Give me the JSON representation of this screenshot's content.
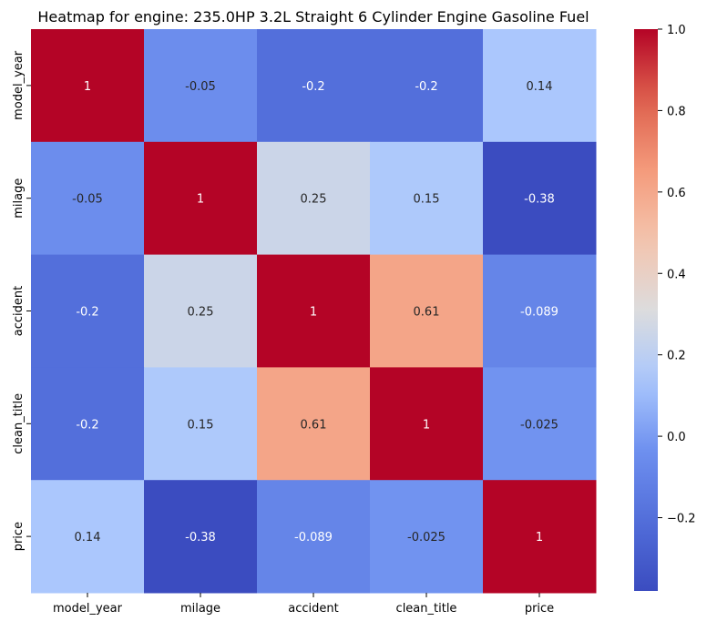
{
  "chart_data": {
    "type": "heatmap",
    "title": "Heatmap for engine: 235.0HP 3.2L Straight 6 Cylinder Engine Gasoline Fuel",
    "x_labels": [
      "model_year",
      "milage",
      "accident",
      "clean_title",
      "price"
    ],
    "y_labels": [
      "model_year",
      "milage",
      "accident",
      "clean_title",
      "price"
    ],
    "values": [
      [
        1,
        -0.05,
        -0.2,
        -0.2,
        0.14
      ],
      [
        -0.05,
        1,
        0.25,
        0.15,
        -0.38
      ],
      [
        -0.2,
        0.25,
        1,
        0.61,
        -0.089
      ],
      [
        -0.2,
        0.15,
        0.61,
        1,
        -0.025
      ],
      [
        0.14,
        -0.38,
        -0.089,
        -0.025,
        1
      ]
    ],
    "value_labels": [
      [
        "1",
        "-0.05",
        "-0.2",
        "-0.2",
        "0.14"
      ],
      [
        "-0.05",
        "1",
        "0.25",
        "0.15",
        "-0.38"
      ],
      [
        "-0.2",
        "0.25",
        "1",
        "0.61",
        "-0.089"
      ],
      [
        "-0.2",
        "0.15",
        "0.61",
        "1",
        "-0.025"
      ],
      [
        "0.14",
        "-0.38",
        "-0.089",
        "-0.025",
        "1"
      ]
    ],
    "colormap": "coolwarm",
    "color_range": [
      -0.38,
      1.0
    ],
    "colorbar_ticks": [
      1.0,
      0.8,
      0.6,
      0.4,
      0.2,
      0.0,
      -0.2
    ],
    "colorbar_tick_labels": [
      "1.0",
      "0.8",
      "0.6",
      "0.4",
      "0.2",
      "0.0",
      "−0.2"
    ],
    "colors": {
      "low": "#3b4cc0",
      "mid": "#dddddd",
      "high": "#b40426"
    }
  }
}
